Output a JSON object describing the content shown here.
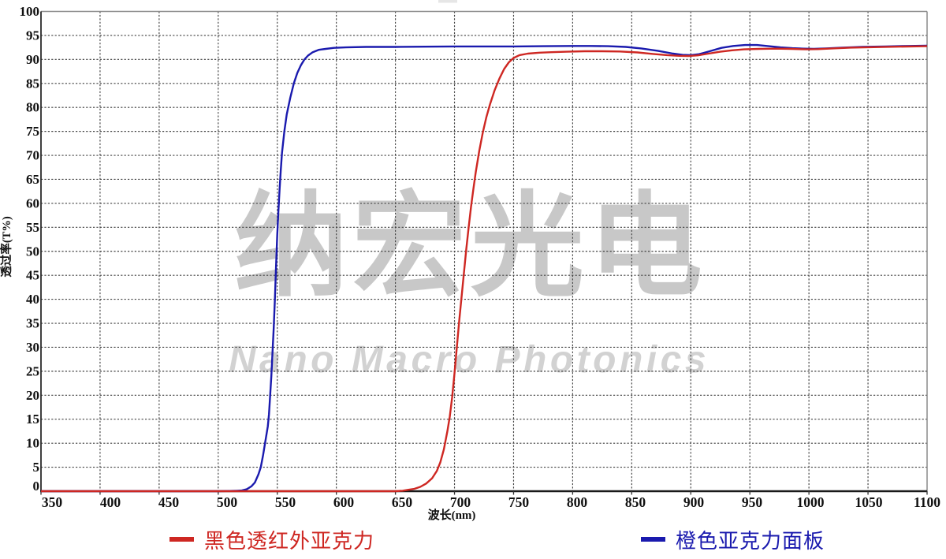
{
  "chart_data": {
    "type": "line",
    "title": "",
    "xlabel": "波长(nm)",
    "ylabel": "透过率(T%)",
    "xlim": [
      350,
      1100
    ],
    "ylim": [
      0,
      100
    ],
    "x_tick_step": 50,
    "y_tick_step": 5,
    "grid": true,
    "legend_position": "bottom",
    "series": [
      {
        "name": "黑色透红外亚克力",
        "color": "#ce2722",
        "points": [
          [
            350,
            0
          ],
          [
            400,
            0
          ],
          [
            450,
            0
          ],
          [
            500,
            0
          ],
          [
            550,
            0
          ],
          [
            600,
            0
          ],
          [
            630,
            0
          ],
          [
            650,
            0
          ],
          [
            656,
            0.1
          ],
          [
            661,
            0.3
          ],
          [
            666,
            0.5
          ],
          [
            671,
            0.9
          ],
          [
            676,
            1.6
          ],
          [
            681,
            2.7
          ],
          [
            685,
            4.2
          ],
          [
            688,
            6
          ],
          [
            691,
            8.7
          ],
          [
            694,
            12.5
          ],
          [
            696,
            15.5
          ],
          [
            698,
            19.5
          ],
          [
            700,
            24.5
          ],
          [
            702,
            30
          ],
          [
            704,
            35.5
          ],
          [
            706,
            40.5
          ],
          [
            708,
            45.5
          ],
          [
            710,
            50.5
          ],
          [
            712,
            55
          ],
          [
            714,
            59.3
          ],
          [
            716,
            63
          ],
          [
            718,
            66.5
          ],
          [
            721,
            71
          ],
          [
            724,
            74.8
          ],
          [
            727,
            78
          ],
          [
            730,
            80.6
          ],
          [
            734,
            83.6
          ],
          [
            738,
            86
          ],
          [
            742,
            88
          ],
          [
            746,
            89.4
          ],
          [
            750,
            90.3
          ],
          [
            755,
            90.9
          ],
          [
            762,
            91.2
          ],
          [
            772,
            91.4
          ],
          [
            782,
            91.5
          ],
          [
            795,
            91.6
          ],
          [
            810,
            91.7
          ],
          [
            825,
            91.7
          ],
          [
            840,
            91.65
          ],
          [
            855,
            91.45
          ],
          [
            868,
            91.15
          ],
          [
            880,
            90.9
          ],
          [
            890,
            90.75
          ],
          [
            898,
            90.7
          ],
          [
            906,
            90.85
          ],
          [
            915,
            91.2
          ],
          [
            925,
            91.6
          ],
          [
            935,
            91.9
          ],
          [
            945,
            92.1
          ],
          [
            958,
            92.2
          ],
          [
            972,
            92.25
          ],
          [
            985,
            92.2
          ],
          [
            998,
            92.1
          ],
          [
            1008,
            92.15
          ],
          [
            1020,
            92.3
          ],
          [
            1035,
            92.45
          ],
          [
            1055,
            92.55
          ],
          [
            1075,
            92.65
          ],
          [
            1100,
            92.75
          ]
        ]
      },
      {
        "name": "橙色亚克力面板",
        "color": "#1a1aae",
        "points": [
          [
            350,
            0
          ],
          [
            400,
            0
          ],
          [
            450,
            0
          ],
          [
            480,
            0
          ],
          [
            500,
            0
          ],
          [
            510,
            0.05
          ],
          [
            516,
            0.1
          ],
          [
            520,
            0.15
          ],
          [
            524,
            0.4
          ],
          [
            528,
            1
          ],
          [
            531,
            1.8
          ],
          [
            534,
            3.5
          ],
          [
            536,
            5
          ],
          [
            538,
            7.5
          ],
          [
            540,
            10.5
          ],
          [
            542,
            13.5
          ],
          [
            543,
            16
          ],
          [
            545,
            24
          ],
          [
            546,
            29
          ],
          [
            547,
            34
          ],
          [
            548,
            40
          ],
          [
            549,
            47
          ],
          [
            550,
            53.5
          ],
          [
            551,
            58.5
          ],
          [
            552,
            63
          ],
          [
            553,
            67
          ],
          [
            554,
            70.5
          ],
          [
            556,
            75
          ],
          [
            558,
            78.5
          ],
          [
            561,
            82
          ],
          [
            564,
            85
          ],
          [
            567,
            87.2
          ],
          [
            570,
            88.8
          ],
          [
            573,
            90
          ],
          [
            576,
            90.8
          ],
          [
            580,
            91.5
          ],
          [
            585,
            92
          ],
          [
            591,
            92.2
          ],
          [
            598,
            92.4
          ],
          [
            608,
            92.5
          ],
          [
            625,
            92.6
          ],
          [
            650,
            92.6
          ],
          [
            675,
            92.65
          ],
          [
            700,
            92.7
          ],
          [
            725,
            92.7
          ],
          [
            750,
            92.7
          ],
          [
            775,
            92.75
          ],
          [
            800,
            92.8
          ],
          [
            815,
            92.8
          ],
          [
            830,
            92.75
          ],
          [
            845,
            92.6
          ],
          [
            858,
            92.3
          ],
          [
            872,
            91.8
          ],
          [
            885,
            91.2
          ],
          [
            893,
            90.95
          ],
          [
            900,
            90.9
          ],
          [
            907,
            91.1
          ],
          [
            916,
            91.7
          ],
          [
            926,
            92.4
          ],
          [
            936,
            92.8
          ],
          [
            946,
            93.0
          ],
          [
            956,
            93.0
          ],
          [
            966,
            92.75
          ],
          [
            976,
            92.5
          ],
          [
            986,
            92.35
          ],
          [
            996,
            92.25
          ],
          [
            1004,
            92.2
          ],
          [
            1014,
            92.3
          ],
          [
            1028,
            92.45
          ],
          [
            1045,
            92.6
          ],
          [
            1065,
            92.7
          ],
          [
            1085,
            92.8
          ],
          [
            1100,
            92.85
          ]
        ]
      }
    ]
  },
  "watermark": {
    "line1": "纳宏光电",
    "line2": "Nano Macro Photonics",
    "color1": "#c8c8c8",
    "color2": "#d2d2d2"
  },
  "legend": {
    "items": [
      {
        "label": "黑色透红外亚克力",
        "color": "#ce2722"
      },
      {
        "label": "橙色亚克力面板",
        "color": "#1a1aae"
      }
    ]
  }
}
